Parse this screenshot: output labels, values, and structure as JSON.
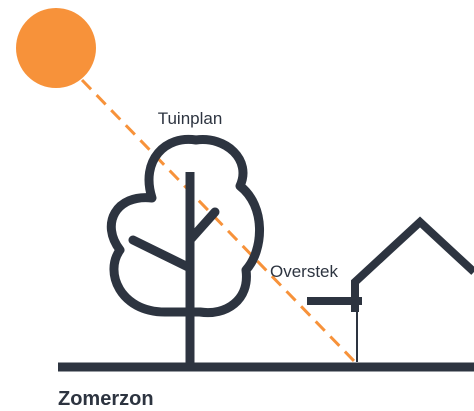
{
  "labels": {
    "tuinplan": "Tuinplan",
    "overstek": "Overstek"
  },
  "caption": "Zomerzon"
}
